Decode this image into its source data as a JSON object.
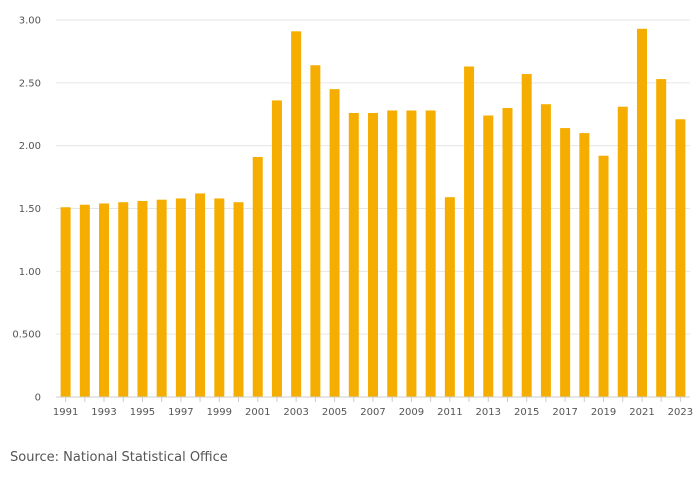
{
  "chart_data": {
    "type": "bar",
    "title": "",
    "xlabel": "",
    "ylabel": "",
    "ylim": [
      0,
      3.0
    ],
    "grid": true,
    "y_ticks": [
      "0",
      "0.500",
      "1.00",
      "1.50",
      "2.00",
      "2.50",
      "3.00"
    ],
    "y_tick_values": [
      0,
      0.5,
      1.0,
      1.5,
      2.0,
      2.5,
      3.0
    ],
    "categories": [
      "1991",
      "1992",
      "1993",
      "1994",
      "1995",
      "1996",
      "1997",
      "1998",
      "1999",
      "2000",
      "2001",
      "2002",
      "2003",
      "2004",
      "2005",
      "2006",
      "2007",
      "2008",
      "2009",
      "2010",
      "2011",
      "2012",
      "2013",
      "2014",
      "2015",
      "2016",
      "2017",
      "2018",
      "2019",
      "2020",
      "2021",
      "2022",
      "2023"
    ],
    "x_tick_labels": [
      "1991",
      "1993",
      "1995",
      "1997",
      "1999",
      "2001",
      "2003",
      "2005",
      "2007",
      "2009",
      "2011",
      "2013",
      "2015",
      "2017",
      "2019",
      "2021",
      "2023"
    ],
    "values": [
      1.51,
      1.53,
      1.54,
      1.55,
      1.56,
      1.57,
      1.58,
      1.62,
      1.58,
      1.55,
      1.91,
      2.36,
      2.91,
      2.64,
      2.45,
      2.26,
      2.26,
      2.28,
      2.28,
      2.28,
      1.59,
      2.63,
      2.24,
      2.3,
      2.57,
      2.33,
      2.14,
      2.1,
      1.92,
      2.31,
      2.93,
      2.53,
      2.21
    ],
    "bar_color": "#f5ae00",
    "grid_color": "#e6e6e6",
    "axis_color": "#cccccc"
  },
  "source": "Source: National Statistical Office"
}
